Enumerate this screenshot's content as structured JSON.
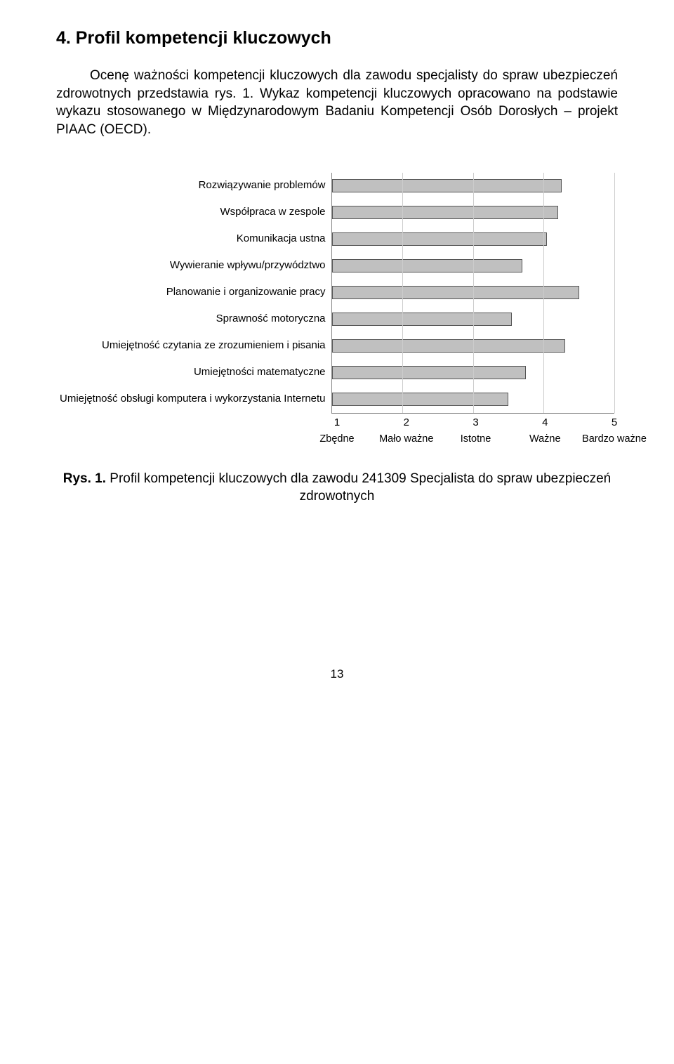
{
  "heading": "4. Profil kompetencji kluczowych",
  "paragraph": "Ocenę ważności kompetencji kluczowych dla zawodu specjalisty do spraw ubezpieczeń zdrowotnych przedstawia rys. 1. Wykaz kompetencji kluczowych opracowano na podstawie wykazu stosowanego w Międzynarodowym Badaniu Kompetencji Osób Dorosłych – projekt PIAAC (OECD).",
  "chart": {
    "type": "bar-horizontal",
    "xmin": 1,
    "xmax": 5,
    "xtick_values": [
      1,
      2,
      3,
      4,
      5
    ],
    "xtick_categories": [
      "Zbędne",
      "Mało ważne",
      "Istotne",
      "Ważne",
      "Bardzo ważne"
    ],
    "grid_color": "#cccccc",
    "axis_color": "#888888",
    "bar_fill": "#c0c0c0",
    "bar_border": "#555555",
    "background": "#ffffff",
    "label_fontsize": 15,
    "tick_fontsize": 15,
    "items": [
      {
        "label": "Rozwiązywanie problemów",
        "value": 4.25
      },
      {
        "label": "Współpraca w zespole",
        "value": 4.2
      },
      {
        "label": "Komunikacja ustna",
        "value": 4.05
      },
      {
        "label": "Wywieranie wpływu/przywództwo",
        "value": 3.7
      },
      {
        "label": "Planowanie i organizowanie pracy",
        "value": 4.5
      },
      {
        "label": "Sprawność motoryczna",
        "value": 3.55
      },
      {
        "label": "Umiejętność czytania ze zrozumieniem i pisania",
        "value": 4.3
      },
      {
        "label": "Umiejętności matematyczne",
        "value": 3.75
      },
      {
        "label": "Umiejętność obsługi komputera i wykorzystania Internetu",
        "value": 3.5
      }
    ]
  },
  "caption_prefix": "Rys. 1.",
  "caption_text": " Profil kompetencji kluczowych dla zawodu 241309 Specjalista do spraw ubezpieczeń zdrowotnych",
  "page_number": "13"
}
